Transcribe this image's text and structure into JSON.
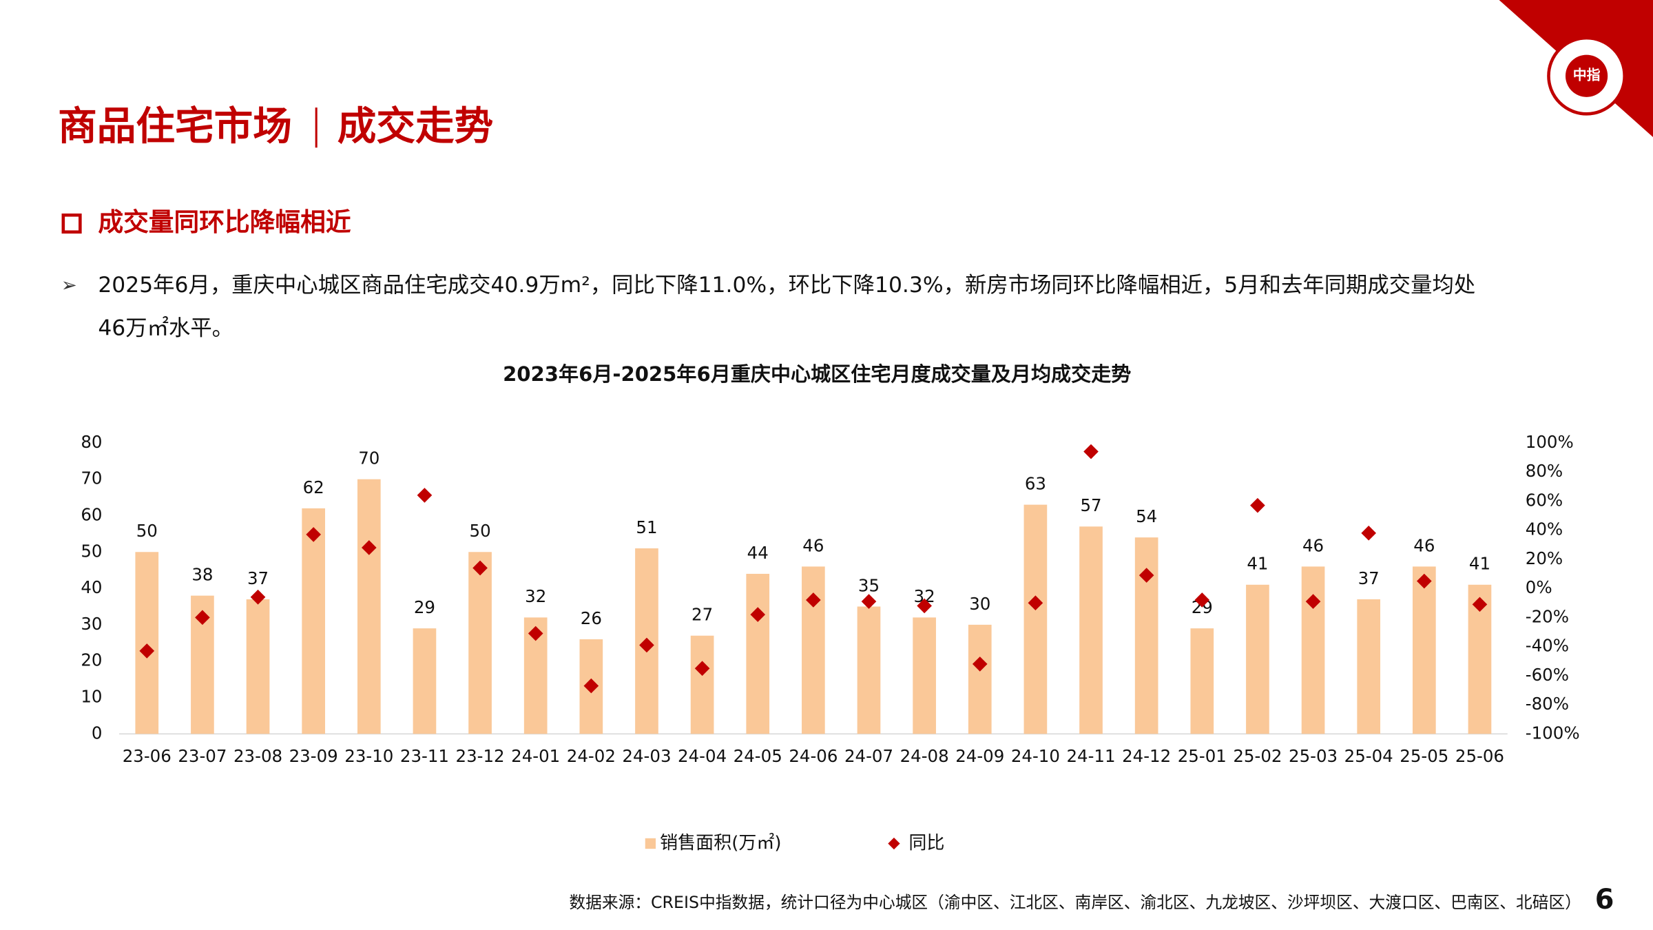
{
  "header": {
    "title_main": "商品住宅市场",
    "title_sub": "成交走势",
    "logo": "中指"
  },
  "section": {
    "heading": "成交量同环比降幅相近",
    "bullet": [
      "2025年6月，重庆中心城区商品住宅成交40.9万m²，同比下降11.0%，环比下降10.3%，新房市场同环比降幅相近，5月和去年同期成交量均处",
      "46万㎡水平。"
    ]
  },
  "chart_data": {
    "type": "bar",
    "title": "2023年6月-2025年6月重庆中心城区住宅月度成交量及月均成交走势",
    "categories": [
      "23-06",
      "23-07",
      "23-08",
      "23-09",
      "23-10",
      "23-11",
      "23-12",
      "24-01",
      "24-02",
      "24-03",
      "24-04",
      "24-05",
      "24-06",
      "24-07",
      "24-08",
      "24-09",
      "24-10",
      "24-11",
      "24-12",
      "25-01",
      "25-02",
      "25-03",
      "25-04",
      "25-05",
      "25-06"
    ],
    "series": [
      {
        "name": "销售面积(万㎡)",
        "type": "bar",
        "color": "#FAC898",
        "values": [
          50,
          38,
          37,
          62,
          70,
          29,
          50,
          32,
          26,
          51,
          27,
          44,
          46,
          35,
          32,
          30,
          63,
          57,
          54,
          29,
          41,
          46,
          37,
          46,
          41
        ]
      },
      {
        "name": "同比",
        "type": "scatter",
        "axis": "y2",
        "color": "#C00000",
        "values": [
          -43,
          -20,
          -6,
          37,
          28,
          64,
          14,
          -31,
          -67,
          -39,
          -55,
          -18,
          -8,
          -9,
          -12,
          -52,
          -10,
          94,
          9,
          -8,
          57,
          -9,
          38,
          5,
          -11
        ]
      }
    ],
    "ylim": [
      0,
      80
    ],
    "yticks": [
      0,
      10,
      20,
      30,
      40,
      50,
      60,
      70,
      80
    ],
    "y2lim": [
      -100,
      100
    ],
    "y2ticks": [
      {
        "value": -100,
        "label": "-100%"
      },
      {
        "value": -80,
        "label": "-80%"
      },
      {
        "value": -60,
        "label": "-60%"
      },
      {
        "value": -40,
        "label": "-40%"
      },
      {
        "value": -20,
        "label": "-20%"
      },
      {
        "value": 0,
        "label": "0%"
      },
      {
        "value": 20,
        "label": "20%"
      },
      {
        "value": 40,
        "label": "40%"
      },
      {
        "value": 60,
        "label": "60%"
      },
      {
        "value": 80,
        "label": "80%"
      },
      {
        "value": 100,
        "label": "100%"
      }
    ],
    "grid": false,
    "legend_position": "bottom"
  },
  "footer": {
    "source": "数据来源：CREIS中指数据，统计口径为中心城区（渝中区、江北区、南岸区、渝北区、九龙坡区、沙坪坝区、大渡口区、巴南区、北碚区）",
    "page": "6"
  }
}
